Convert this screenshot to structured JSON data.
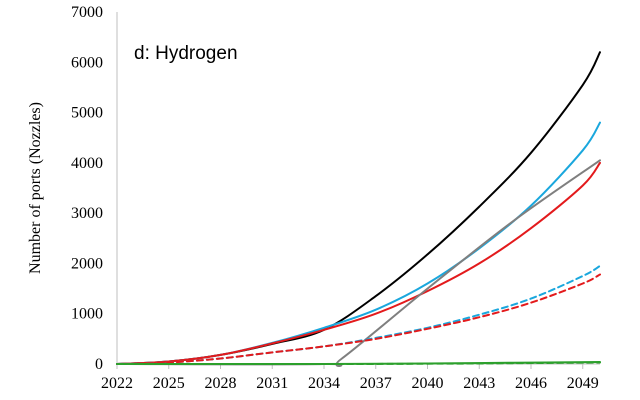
{
  "chart_data": {
    "type": "line",
    "title": "d: Hydrogen",
    "xlabel": "",
    "ylabel": "Number of ports (Nozzles)",
    "xlim": [
      2022,
      2050
    ],
    "ylim": [
      0,
      7000
    ],
    "x_ticks": [
      2022,
      2025,
      2028,
      2031,
      2034,
      2037,
      2040,
      2043,
      2046,
      2049
    ],
    "y_ticks": [
      0,
      1000,
      2000,
      3000,
      4000,
      5000,
      6000,
      7000
    ],
    "x_tick_labels": [
      "2022",
      "2025",
      "2028",
      "2031",
      "2034",
      "2037",
      "2040",
      "2043",
      "2046",
      "2049"
    ],
    "y_tick_labels": [
      "0",
      "1000",
      "2000",
      "3000",
      "4000",
      "5000",
      "6000",
      "7000"
    ],
    "grid": false,
    "legend": "none",
    "series": [
      {
        "color": "#000000",
        "dash": "solid",
        "points": [
          [
            2022,
            0
          ],
          [
            2025,
            50
          ],
          [
            2028,
            180
          ],
          [
            2031,
            400
          ],
          [
            2034,
            680
          ],
          [
            2037,
            1350
          ],
          [
            2040,
            2180
          ],
          [
            2043,
            3130
          ],
          [
            2046,
            4200
          ],
          [
            2049,
            5550
          ],
          [
            2050,
            6200
          ]
        ]
      },
      {
        "color": "#1aa7dd",
        "dash": "solid",
        "points": [
          [
            2022,
            0
          ],
          [
            2025,
            50
          ],
          [
            2028,
            180
          ],
          [
            2031,
            420
          ],
          [
            2034,
            720
          ],
          [
            2037,
            1080
          ],
          [
            2040,
            1600
          ],
          [
            2043,
            2300
          ],
          [
            2046,
            3150
          ],
          [
            2049,
            4250
          ],
          [
            2050,
            4800
          ]
        ]
      },
      {
        "color": "#e31a1c",
        "dash": "solid",
        "points": [
          [
            2022,
            0
          ],
          [
            2025,
            50
          ],
          [
            2028,
            180
          ],
          [
            2031,
            410
          ],
          [
            2034,
            680
          ],
          [
            2037,
            1000
          ],
          [
            2040,
            1450
          ],
          [
            2043,
            2000
          ],
          [
            2046,
            2700
          ],
          [
            2049,
            3550
          ],
          [
            2050,
            4000
          ]
        ]
      },
      {
        "color": "#7f7f7f",
        "dash": "solid",
        "points": [
          [
            2022,
            0
          ],
          [
            2034,
            0
          ],
          [
            2035,
            100
          ],
          [
            2040,
            1500
          ],
          [
            2045,
            2850
          ],
          [
            2050,
            4050
          ]
        ]
      },
      {
        "color": "#1aa7dd",
        "dash": "dashed",
        "points": [
          [
            2022,
            0
          ],
          [
            2025,
            30
          ],
          [
            2028,
            110
          ],
          [
            2031,
            230
          ],
          [
            2034,
            350
          ],
          [
            2037,
            520
          ],
          [
            2040,
            720
          ],
          [
            2043,
            980
          ],
          [
            2046,
            1300
          ],
          [
            2049,
            1750
          ],
          [
            2050,
            1950
          ]
        ]
      },
      {
        "color": "#e31a1c",
        "dash": "dashed",
        "points": [
          [
            2022,
            0
          ],
          [
            2025,
            30
          ],
          [
            2028,
            110
          ],
          [
            2031,
            230
          ],
          [
            2034,
            350
          ],
          [
            2037,
            500
          ],
          [
            2040,
            700
          ],
          [
            2043,
            930
          ],
          [
            2046,
            1220
          ],
          [
            2049,
            1600
          ],
          [
            2050,
            1780
          ]
        ]
      },
      {
        "color": "#2ca02c",
        "dash": "solid",
        "points": [
          [
            2022,
            0
          ],
          [
            2034,
            0
          ],
          [
            2040,
            10
          ],
          [
            2045,
            25
          ],
          [
            2050,
            40
          ]
        ]
      },
      {
        "color": "#2ca02c",
        "dash": "dashed",
        "points": [
          [
            2022,
            0
          ],
          [
            2034,
            0
          ],
          [
            2040,
            5
          ],
          [
            2045,
            15
          ],
          [
            2050,
            30
          ]
        ]
      }
    ]
  }
}
